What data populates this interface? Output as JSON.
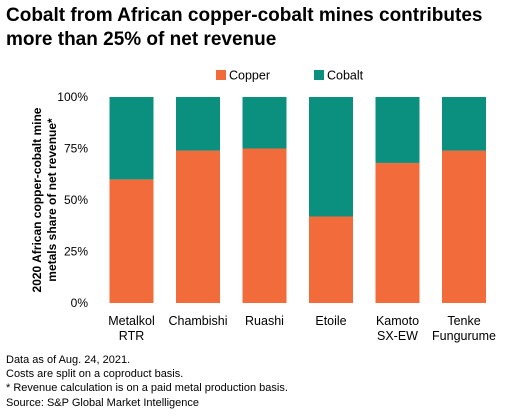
{
  "chart_data": {
    "type": "bar",
    "stacked": true,
    "title": "Cobalt from African copper-cobalt mines contributes more than 25% of net revenue",
    "ylabel": [
      "2020 African copper-cobalt mine",
      "metals share of net revenue*"
    ],
    "xlabel": "",
    "ylim": [
      0,
      100
    ],
    "yticks": [
      0,
      25,
      50,
      75,
      100
    ],
    "ytick_labels": [
      "0%",
      "25%",
      "50%",
      "75%",
      "100%"
    ],
    "legend_position": "top",
    "categories": [
      [
        "Metalkol",
        "RTR"
      ],
      [
        "Chambishi"
      ],
      [
        "Ruashi"
      ],
      [
        "Etoile"
      ],
      [
        "Kamoto",
        "SX-EW"
      ],
      [
        "Tenke",
        "Fungurume"
      ]
    ],
    "series": [
      {
        "name": "Copper",
        "color": "#F26B3A",
        "values": [
          60,
          74,
          75,
          42,
          68,
          74
        ]
      },
      {
        "name": "Cobalt",
        "color": "#0B8F7F",
        "values": [
          40,
          26,
          25,
          58,
          32,
          26
        ]
      }
    ]
  },
  "notes": [
    "Data as of Aug. 24, 2021.",
    "Costs are split on a coproduct basis.",
    "* Revenue calculation is on a paid metal production basis.",
    "Source: S&P Global Market Intelligence"
  ]
}
